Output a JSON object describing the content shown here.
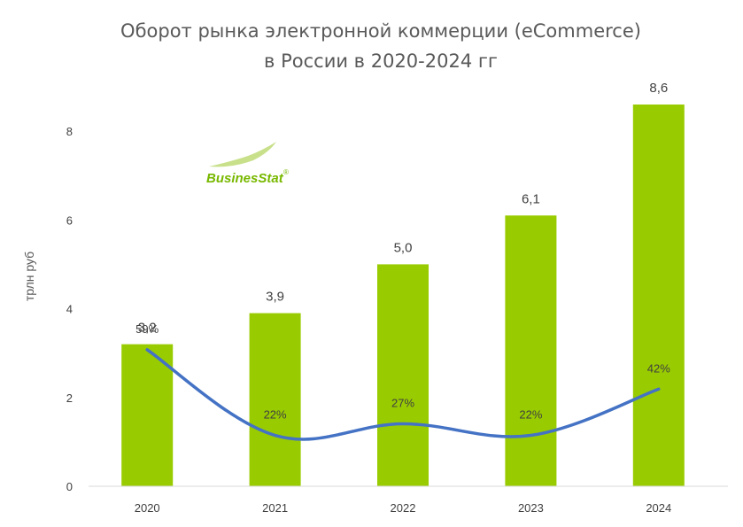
{
  "chart_data": {
    "type": "bar",
    "title": [
      "Оборот рынка электронной коммерции (eCommerce)",
      "в России в 2020-2024 гг"
    ],
    "ylabel": "трлн руб",
    "categories": [
      "2020",
      "2021",
      "2022",
      "2023",
      "2024"
    ],
    "series": [
      {
        "type": "bar",
        "values": [
          3.2,
          3.9,
          5.0,
          6.1,
          8.6
        ],
        "labels": [
          "3,2",
          "3,9",
          "5,0",
          "6,1",
          "8,6"
        ],
        "color": "#99cc00"
      },
      {
        "type": "line",
        "values": [
          59,
          22,
          27,
          22,
          42
        ],
        "labels": [
          "59%",
          "22%",
          "27%",
          "22%",
          "42%"
        ],
        "color": "#4472c4"
      }
    ],
    "yticks": [
      "0",
      "2",
      "4",
      "6",
      "8"
    ],
    "ylim": [
      0,
      8.6
    ],
    "grid": false,
    "legend": "none"
  },
  "logo": {
    "text": "BusinesStat",
    "mark": "®",
    "color": "#78b800"
  }
}
